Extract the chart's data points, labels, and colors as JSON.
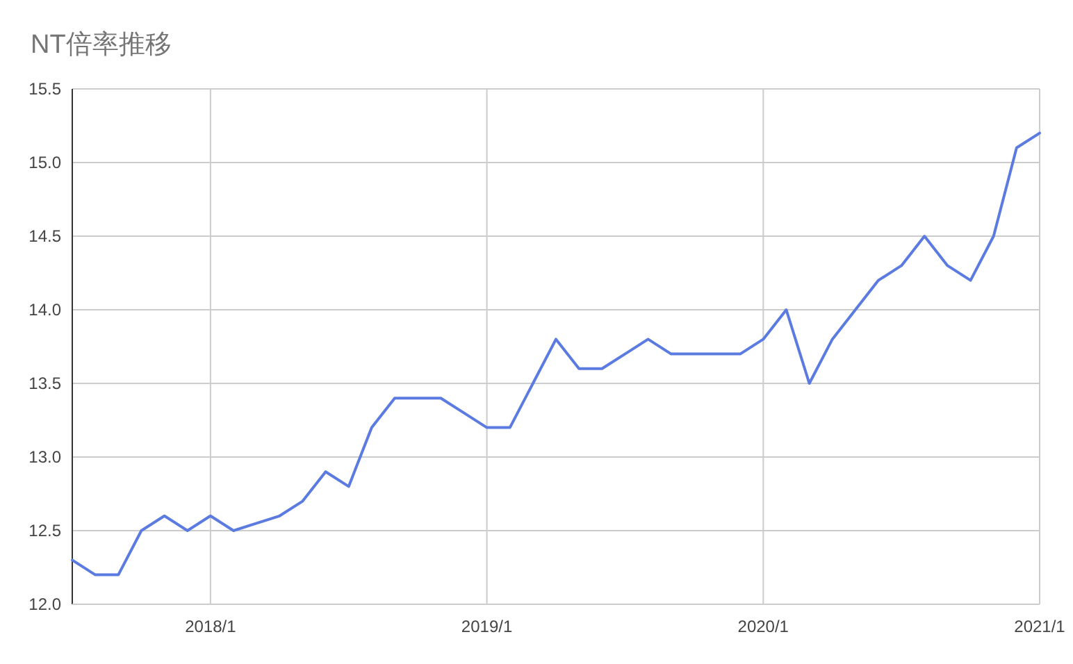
{
  "chart_data": {
    "type": "line",
    "title": "NT倍率推移",
    "x": [
      "2017-07",
      "2017-08",
      "2017-09",
      "2017-10",
      "2017-11",
      "2017-12",
      "2018-01",
      "2018-02",
      "2018-03",
      "2018-04",
      "2018-05",
      "2018-06",
      "2018-07",
      "2018-08",
      "2018-09",
      "2018-10",
      "2018-11",
      "2018-12",
      "2019-01",
      "2019-02",
      "2019-03",
      "2019-04",
      "2019-05",
      "2019-06",
      "2019-07",
      "2019-08",
      "2019-09",
      "2019-10",
      "2019-11",
      "2019-12",
      "2020-01",
      "2020-02",
      "2020-03",
      "2020-04",
      "2020-05",
      "2020-06",
      "2020-07",
      "2020-08",
      "2020-09",
      "2020-10",
      "2020-11",
      "2020-12",
      "2021-01"
    ],
    "series": [
      {
        "color": "#5b7be0",
        "values": [
          12.3,
          12.2,
          12.2,
          12.5,
          12.6,
          12.5,
          12.6,
          12.5,
          12.55,
          12.6,
          12.7,
          12.9,
          12.8,
          13.2,
          13.4,
          13.4,
          13.4,
          13.3,
          13.2,
          13.2,
          13.5,
          13.8,
          13.6,
          13.6,
          13.7,
          13.8,
          13.7,
          13.7,
          13.7,
          13.7,
          13.8,
          14.0,
          13.5,
          13.8,
          14.0,
          14.2,
          14.3,
          14.5,
          14.3,
          14.2,
          14.5,
          15.1,
          15.2
        ]
      }
    ],
    "xlim": [
      "2017-07",
      "2021-01"
    ],
    "xticks": [
      {
        "value": "2018-01",
        "label": "2018/1"
      },
      {
        "value": "2019-01",
        "label": "2019/1"
      },
      {
        "value": "2020-01",
        "label": "2020/1"
      },
      {
        "value": "2021-01",
        "label": "2021/1"
      }
    ],
    "ylim": [
      12,
      15.5
    ],
    "yticks": [
      {
        "value": 12,
        "label": "12.0"
      },
      {
        "value": 12.5,
        "label": "12.5"
      },
      {
        "value": 13,
        "label": "13.0"
      },
      {
        "value": 13.5,
        "label": "13.5"
      },
      {
        "value": 14,
        "label": "14.0"
      },
      {
        "value": 14.5,
        "label": "14.5"
      },
      {
        "value": 15,
        "label": "15.0"
      },
      {
        "value": 15.5,
        "label": "15.5"
      }
    ],
    "grid": true
  }
}
